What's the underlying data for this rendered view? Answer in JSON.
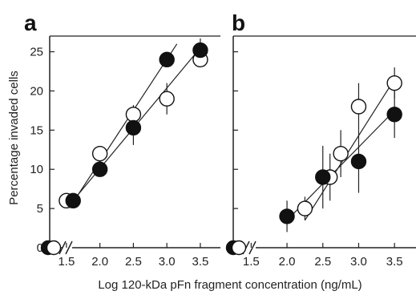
{
  "chart_data": {
    "type": "scatter",
    "xlabel": "Log 120-kDa pFn fragment concentration (ng/mL)",
    "ylabel": "Percentage invaded cells",
    "ylim": [
      0,
      27
    ],
    "y_ticks": [
      "0",
      "5",
      "10",
      "15",
      "20",
      "25"
    ],
    "axis_break": true,
    "panels": [
      {
        "label": "a",
        "xlim": [
          1.25,
          3.8
        ],
        "x_ticks": [
          "1.5",
          "2.0",
          "2.5",
          "3.0",
          "3.5"
        ],
        "zero_points": [
          {
            "marker": "filled",
            "y": 0
          },
          {
            "marker": "open",
            "y": 0
          }
        ],
        "series": [
          {
            "marker": "filled",
            "points": [
              {
                "x": 1.6,
                "y": 6,
                "err": 0.8
              },
              {
                "x": 2.0,
                "y": 10,
                "err": 0.8
              },
              {
                "x": 2.5,
                "y": 15.3,
                "err": 2.2
              },
              {
                "x": 3.0,
                "y": 24,
                "err": 0.8
              },
              {
                "x": 3.5,
                "y": 25.2,
                "err": 1.5
              }
            ],
            "fit": [
              [
                1.6,
                5.8
              ],
              [
                3.15,
                26
              ]
            ]
          },
          {
            "marker": "open",
            "points": [
              {
                "x": 1.5,
                "y": 6,
                "err": 0.8
              },
              {
                "x": 2.0,
                "y": 12,
                "err": 0.8
              },
              {
                "x": 2.5,
                "y": 17,
                "err": 1.2
              },
              {
                "x": 3.0,
                "y": 19,
                "err": 2.0
              },
              {
                "x": 3.5,
                "y": 24,
                "err": 1.0
              }
            ],
            "fit": [
              [
                1.55,
                5.5
              ],
              [
                3.5,
                25.5
              ]
            ]
          }
        ]
      },
      {
        "label": "b",
        "xlim": [
          1.25,
          3.8
        ],
        "x_ticks": [
          "1.5",
          "2.0",
          "2.5",
          "3.0",
          "3.5"
        ],
        "zero_points": [
          {
            "marker": "filled",
            "y": 0
          },
          {
            "marker": "open",
            "y": 0
          }
        ],
        "series": [
          {
            "marker": "filled",
            "points": [
              {
                "x": 2.0,
                "y": 4,
                "err": 2.0
              },
              {
                "x": 2.5,
                "y": 9,
                "err": 4.0
              },
              {
                "x": 3.0,
                "y": 11,
                "err": 4.0
              },
              {
                "x": 3.5,
                "y": 17,
                "err": 3.0
              }
            ],
            "fit": [
              [
                2.0,
                3.5
              ],
              [
                3.5,
                17.5
              ]
            ]
          },
          {
            "marker": "open",
            "points": [
              {
                "x": 2.25,
                "y": 5,
                "err": 1.5
              },
              {
                "x": 2.6,
                "y": 9,
                "err": 3.0
              },
              {
                "x": 2.75,
                "y": 12,
                "err": 3.0
              },
              {
                "x": 3.0,
                "y": 18,
                "err": 3.0
              },
              {
                "x": 3.5,
                "y": 21,
                "err": 2.0
              }
            ],
            "fit": [
              [
                2.25,
                3.5
              ],
              [
                3.5,
                21.5
              ]
            ]
          }
        ]
      }
    ]
  }
}
